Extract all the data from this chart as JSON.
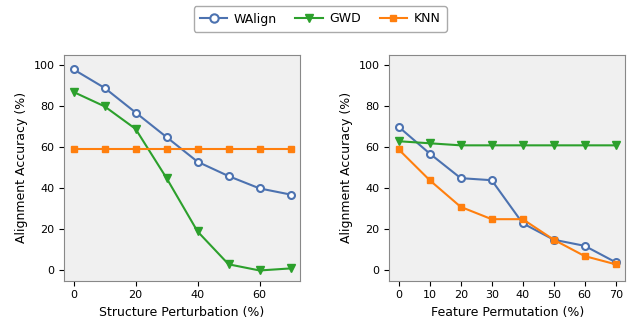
{
  "plot1": {
    "xlabel": "Structure Perturbation (%)",
    "ylabel": "Alignment Accuracy (%)",
    "xlim": [
      -3,
      73
    ],
    "ylim": [
      -5,
      105
    ],
    "xticks": [
      0,
      20,
      40,
      60
    ],
    "yticks": [
      0,
      20,
      40,
      60,
      80,
      100
    ],
    "walign_x": [
      0,
      10,
      20,
      30,
      40,
      50,
      60,
      70
    ],
    "walign_y": [
      98,
      89,
      77,
      65,
      53,
      46,
      40,
      37
    ],
    "gwd_x": [
      0,
      10,
      20,
      30,
      40,
      50,
      60,
      70
    ],
    "gwd_y": [
      87,
      80,
      69,
      45,
      19,
      3,
      0,
      1
    ],
    "knn_x": [
      0,
      10,
      20,
      30,
      40,
      50,
      60,
      70
    ],
    "knn_y": [
      59,
      59,
      59,
      59,
      59,
      59,
      59,
      59
    ]
  },
  "plot2": {
    "xlabel": "Feature Permutation (%)",
    "ylabel": "Alignment Accuracy (%)",
    "xlim": [
      -3,
      73
    ],
    "ylim": [
      -5,
      105
    ],
    "xticks": [
      0,
      10,
      20,
      30,
      40,
      50,
      60,
      70
    ],
    "yticks": [
      0,
      20,
      40,
      60,
      80,
      100
    ],
    "walign_x": [
      0,
      10,
      20,
      30,
      40,
      50,
      60,
      70
    ],
    "walign_y": [
      70,
      57,
      45,
      44,
      23,
      15,
      12,
      4
    ],
    "gwd_x": [
      0,
      10,
      20,
      30,
      40,
      50,
      60,
      70
    ],
    "gwd_y": [
      63,
      62,
      61,
      61,
      61,
      61,
      61,
      61
    ],
    "knn_x": [
      0,
      10,
      20,
      30,
      40,
      50,
      60,
      70
    ],
    "knn_y": [
      59,
      44,
      31,
      25,
      25,
      15,
      7,
      3
    ]
  },
  "colors": {
    "walign": "#4C72B0",
    "gwd": "#2ca02c",
    "knn": "#FF7F0E"
  },
  "figsize": [
    6.4,
    3.34
  ],
  "dpi": 100,
  "bg_color": "#f0f0f0"
}
